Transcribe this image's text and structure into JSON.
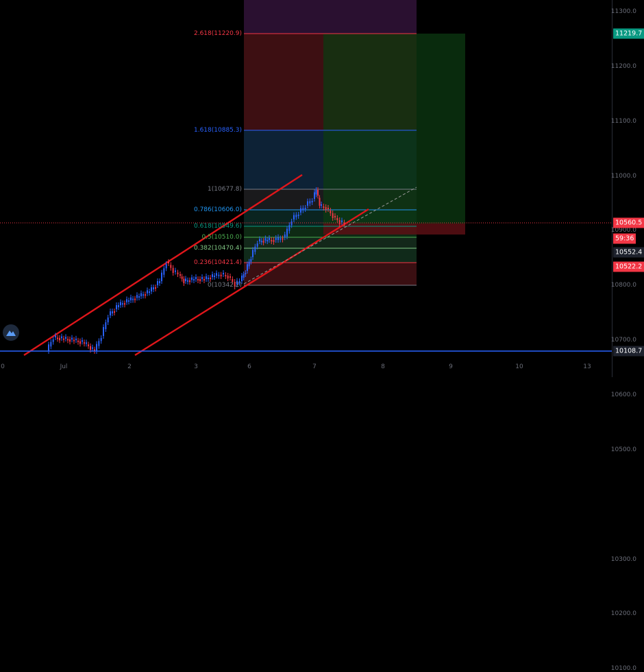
{
  "chart_data": {
    "type": "candlestick",
    "price_axis": {
      "ticks": [
        "11300.0",
        "11200.0",
        "11100.0",
        "11000.0",
        "10900.0",
        "10800.0",
        "10700.0",
        "10600.0",
        "10500.0",
        "10300.0",
        "10200.0",
        "10100.0"
      ],
      "range": [
        10090,
        11340
      ]
    },
    "time_axis": {
      "ticks": [
        "0",
        "Jul",
        "2",
        "3",
        "6",
        "7",
        "8",
        "9",
        "10",
        "13"
      ]
    },
    "price_badges": [
      {
        "name": "last-price-badge",
        "text": "11219.7",
        "color": "#089981"
      },
      {
        "name": "current-price-badge",
        "text": "10560.5",
        "color": "#f23645"
      },
      {
        "name": "countdown-badge",
        "text": "59:36",
        "color": "#f23645"
      },
      {
        "name": "position-price-badge",
        "text": "10552.4",
        "color": "#1e222d"
      },
      {
        "name": "stop-price-badge",
        "text": "10522.2",
        "color": "#f23645"
      },
      {
        "name": "bottom-price-badge",
        "text": "10108.7",
        "color": "#1e222d"
      }
    ],
    "fib_levels": [
      {
        "ratio": "2.618",
        "price": "11220.9",
        "label": "2.618(11220.9)",
        "color": "#f23645"
      },
      {
        "ratio": "1.618",
        "price": "10885.3",
        "label": "1.618(10885.3)",
        "color": "#2962ff"
      },
      {
        "ratio": "1",
        "price": "10677.8",
        "label": "1(10677.8)",
        "color": "#787b86"
      },
      {
        "ratio": "0.786",
        "price": "10606.0",
        "label": "0.786(10606.0)",
        "color": "#2196f3"
      },
      {
        "ratio": "0.618",
        "price": "10549.6",
        "label": "0.618(10549.6)",
        "color": "#089981"
      },
      {
        "ratio": "0.5",
        "price": "10510.0",
        "label": "0.5(10510.0)",
        "color": "#4caf50"
      },
      {
        "ratio": "0.382",
        "price": "10470.4",
        "label": "0.382(10470.4)",
        "color": "#81c784"
      },
      {
        "ratio": "0.236",
        "price": "10421.4",
        "label": "0.236(10421.4)",
        "color": "#f23645"
      },
      {
        "ratio": "0",
        "price": "10342.2",
        "label": "0(10342.2)",
        "color": "#787b86"
      }
    ],
    "colors": {
      "up": "#2962ff",
      "down": "#f23645",
      "channel": "#e0161b",
      "bg": "#000000"
    }
  }
}
